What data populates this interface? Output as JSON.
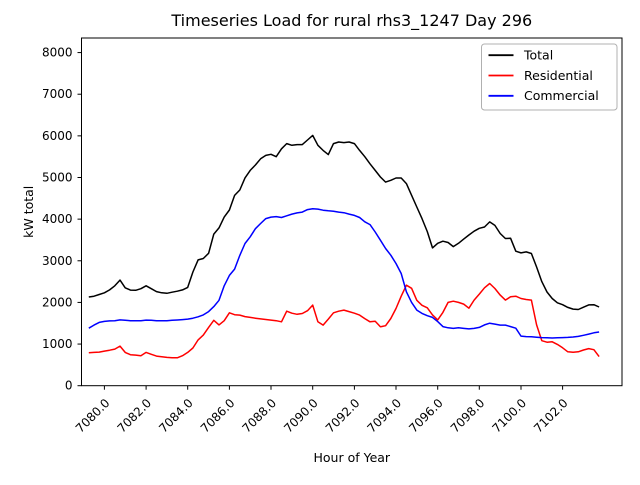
{
  "figure": {
    "title": "Timeseries Load for rural rhs3_1247  Day 296",
    "xlabel": "Hour of Year",
    "ylabel": "kW total"
  },
  "chart_data": {
    "type": "line",
    "title": "Timeseries Load for rural rhs3_1247  Day 296",
    "xlabel": "Hour of Year",
    "ylabel": "kW total",
    "grid": false,
    "xlim": [
      7078.9,
      7104.85
    ],
    "ylim": [
      0,
      8350
    ],
    "xticks": [
      7080,
      7082,
      7084,
      7086,
      7088,
      7090,
      7092,
      7094,
      7096,
      7098,
      7100,
      7102
    ],
    "xtick_labels": [
      "7080.0",
      "7082.0",
      "7084.0",
      "7086.0",
      "7088.0",
      "7090.0",
      "7092.0",
      "7094.0",
      "7096.0",
      "7098.0",
      "7100.0",
      "7102.0"
    ],
    "yticks": [
      0,
      1000,
      2000,
      3000,
      4000,
      5000,
      6000,
      7000,
      8000
    ],
    "ytick_labels": [
      "0",
      "1000",
      "2000",
      "3000",
      "4000",
      "5000",
      "6000",
      "7000",
      "8000"
    ],
    "legend": {
      "position": "upper right"
    },
    "x": [
      7079.25,
      7079.5,
      7079.75,
      7080,
      7080.25,
      7080.5,
      7080.75,
      7081,
      7081.25,
      7081.5,
      7081.75,
      7082,
      7082.25,
      7082.5,
      7082.75,
      7083,
      7083.25,
      7083.5,
      7083.75,
      7084,
      7084.25,
      7084.5,
      7084.75,
      7085,
      7085.25,
      7085.5,
      7085.75,
      7086,
      7086.25,
      7086.5,
      7086.75,
      7087,
      7087.25,
      7087.5,
      7087.75,
      7088,
      7088.25,
      7088.5,
      7088.75,
      7089,
      7089.25,
      7089.5,
      7089.75,
      7090,
      7090.25,
      7090.5,
      7090.75,
      7091,
      7091.25,
      7091.5,
      7091.75,
      7092,
      7092.25,
      7092.5,
      7092.75,
      7093,
      7093.25,
      7093.5,
      7093.75,
      7094,
      7094.25,
      7094.5,
      7094.75,
      7095,
      7095.25,
      7095.5,
      7095.75,
      7096,
      7096.25,
      7096.5,
      7096.75,
      7097,
      7097.25,
      7097.5,
      7097.75,
      7098,
      7098.25,
      7098.5,
      7098.75,
      7099,
      7099.25,
      7099.5,
      7099.75,
      7100,
      7100.25,
      7100.5,
      7100.75,
      7101,
      7101.25,
      7101.5,
      7101.75,
      7102,
      7102.25,
      7102.5,
      7102.75,
      7103,
      7103.25,
      7103.5,
      7103.75
    ],
    "series": [
      {
        "name": "Total",
        "color": "#000000",
        "values": [
          2130,
          2150,
          2190,
          2230,
          2300,
          2400,
          2535,
          2350,
          2295,
          2290,
          2330,
          2400,
          2330,
          2260,
          2230,
          2220,
          2245,
          2270,
          2300,
          2360,
          2730,
          3020,
          3055,
          3180,
          3640,
          3790,
          4050,
          4220,
          4570,
          4700,
          4990,
          5170,
          5300,
          5450,
          5530,
          5556,
          5500,
          5690,
          5813,
          5772,
          5789,
          5790,
          5900,
          6012,
          5772,
          5650,
          5550,
          5813,
          5852,
          5838,
          5852,
          5813,
          5650,
          5500,
          5330,
          5170,
          5012,
          4890,
          4933,
          4988,
          4988,
          4853,
          4573,
          4292,
          4014,
          3700,
          3310,
          3420,
          3470,
          3440,
          3340,
          3420,
          3520,
          3620,
          3710,
          3780,
          3810,
          3933,
          3850,
          3655,
          3535,
          3540,
          3230,
          3190,
          3214,
          3175,
          2850,
          2500,
          2250,
          2095,
          1990,
          1945,
          1880,
          1840,
          1830,
          1885,
          1940,
          1945,
          1890
        ]
      },
      {
        "name": "Residential",
        "color": "#ff0000",
        "values": [
          790,
          800,
          808,
          830,
          852,
          880,
          950,
          800,
          745,
          735,
          720,
          800,
          755,
          710,
          695,
          680,
          672,
          670,
          720,
          800,
          905,
          1100,
          1215,
          1400,
          1570,
          1460,
          1560,
          1750,
          1705,
          1695,
          1660,
          1640,
          1620,
          1605,
          1590,
          1576,
          1560,
          1535,
          1790,
          1740,
          1715,
          1735,
          1800,
          1935,
          1535,
          1456,
          1600,
          1750,
          1790,
          1815,
          1780,
          1740,
          1695,
          1612,
          1535,
          1550,
          1415,
          1440,
          1615,
          1855,
          2150,
          2414,
          2340,
          2050,
          1930,
          1870,
          1700,
          1580,
          1760,
          2000,
          2030,
          2000,
          1960,
          1860,
          2055,
          2200,
          2350,
          2455,
          2335,
          2175,
          2055,
          2135,
          2150,
          2095,
          2071,
          2055,
          1460,
          1080,
          1045,
          1055,
          992,
          910,
          815,
          801,
          815,
          857,
          890,
          865,
          700
        ]
      },
      {
        "name": "Commercial",
        "color": "#0000ff",
        "values": [
          1380,
          1455,
          1520,
          1545,
          1555,
          1560,
          1580,
          1572,
          1560,
          1558,
          1562,
          1575,
          1570,
          1560,
          1558,
          1562,
          1570,
          1578,
          1588,
          1600,
          1620,
          1655,
          1700,
          1780,
          1900,
          2050,
          2400,
          2650,
          2800,
          3130,
          3415,
          3575,
          3770,
          3895,
          4014,
          4050,
          4060,
          4040,
          4080,
          4120,
          4150,
          4170,
          4230,
          4250,
          4240,
          4215,
          4200,
          4190,
          4170,
          4155,
          4120,
          4090,
          4040,
          3935,
          3870,
          3690,
          3494,
          3294,
          3134,
          2935,
          2695,
          2254,
          2000,
          1815,
          1736,
          1680,
          1640,
          1540,
          1420,
          1390,
          1376,
          1390,
          1376,
          1365,
          1376,
          1400,
          1460,
          1500,
          1480,
          1456,
          1456,
          1420,
          1380,
          1190,
          1180,
          1175,
          1165,
          1155,
          1150,
          1145,
          1150,
          1155,
          1160,
          1170,
          1185,
          1210,
          1240,
          1270,
          1290
        ]
      }
    ]
  }
}
